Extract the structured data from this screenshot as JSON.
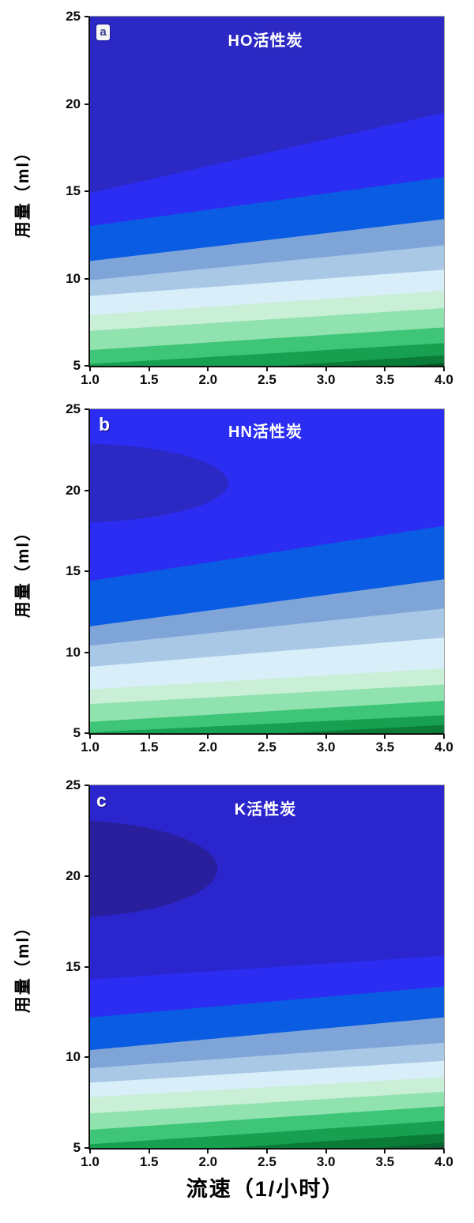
{
  "figure": {
    "x_axis_title": "流速（1/小时）",
    "y_axis_title": "用量（ml）"
  },
  "chart_data": [
    {
      "type": "heatmap",
      "panel_label": "a",
      "panel_label_style": "chip",
      "title": "HO活性炭",
      "xlabel": "流速（1/小时）",
      "ylabel": "用量（ml）",
      "xlim": [
        1.0,
        4.0
      ],
      "ylim": [
        5,
        25
      ],
      "x_ticks": [
        1.0,
        1.5,
        2.0,
        2.5,
        3.0,
        3.5,
        4.0
      ],
      "x_tick_labels": [
        "1.0",
        "1.5",
        "2.0",
        "2.5",
        "3.0",
        "3.5",
        "4.0"
      ],
      "y_ticks": [
        5,
        10,
        15,
        20,
        25
      ],
      "y_tick_labels": [
        "5",
        "10",
        "15",
        "20",
        "25"
      ],
      "legend": "none",
      "grid": false,
      "field_color": "#2b28c4",
      "blob": null,
      "bands": [
        {
          "color": "#2b2ef2",
          "y_at_x1": 14.9,
          "y_at_x4": 19.5
        },
        {
          "color": "#0a5ce2",
          "y_at_x1": 13.0,
          "y_at_x4": 15.8
        },
        {
          "color": "#7fa5d8",
          "y_at_x1": 11.0,
          "y_at_x4": 13.4
        },
        {
          "color": "#a9c8e6",
          "y_at_x1": 9.9,
          "y_at_x4": 11.9
        },
        {
          "color": "#d8eef8",
          "y_at_x1": 9.0,
          "y_at_x4": 10.5
        },
        {
          "color": "#c9efd6",
          "y_at_x1": 7.9,
          "y_at_x4": 9.3
        },
        {
          "color": "#90e2ae",
          "y_at_x1": 7.0,
          "y_at_x4": 8.3
        },
        {
          "color": "#3fc578",
          "y_at_x1": 5.9,
          "y_at_x4": 7.2
        },
        {
          "color": "#16a04f",
          "y_at_x1": 5.1,
          "y_at_x4": 6.3
        },
        {
          "color": "#0b7c38",
          "y_at_x1": 4.3,
          "y_at_x4": 5.6
        },
        {
          "color": "#05531f",
          "y_at_x1": 3.6,
          "y_at_x4": 5.15
        }
      ]
    },
    {
      "type": "heatmap",
      "panel_label": "b",
      "panel_label_style": "plain",
      "title": "HN活性炭",
      "xlabel": "流速（1/小时）",
      "ylabel": "用量（ml）",
      "xlim": [
        1.0,
        4.0
      ],
      "ylim": [
        5,
        25
      ],
      "x_ticks": [
        1.0,
        1.5,
        2.0,
        2.5,
        3.0,
        3.5,
        4.0
      ],
      "x_tick_labels": [
        "1.0",
        "1.5",
        "2.0",
        "2.5",
        "3.0",
        "3.5",
        "4.0"
      ],
      "y_ticks": [
        5,
        10,
        15,
        20,
        25
      ],
      "y_tick_labels": [
        "5",
        "10",
        "15",
        "20",
        "25"
      ],
      "legend": "none",
      "grid": false,
      "field_color": "#2b2ef2",
      "blob": {
        "color": "#2b28c4",
        "cx": 0.85,
        "cy": 20.45,
        "rx": 1.32,
        "ry": 2.45
      },
      "bands": [
        {
          "color": "#0a5ce2",
          "y_at_x1": 14.4,
          "y_at_x4": 17.8
        },
        {
          "color": "#7fa5d8",
          "y_at_x1": 11.6,
          "y_at_x4": 14.5
        },
        {
          "color": "#a9c8e6",
          "y_at_x1": 10.4,
          "y_at_x4": 12.7
        },
        {
          "color": "#d8eef8",
          "y_at_x1": 9.1,
          "y_at_x4": 10.9
        },
        {
          "color": "#c9efd6",
          "y_at_x1": 7.7,
          "y_at_x4": 9.0
        },
        {
          "color": "#90e2ae",
          "y_at_x1": 6.8,
          "y_at_x4": 8.0
        },
        {
          "color": "#3fc578",
          "y_at_x1": 5.7,
          "y_at_x4": 7.0
        },
        {
          "color": "#16a04f",
          "y_at_x1": 5.05,
          "y_at_x4": 6.1
        },
        {
          "color": "#0b7c38",
          "y_at_x1": 4.4,
          "y_at_x4": 5.5
        },
        {
          "color": "#075a28",
          "y_at_x1": 3.6,
          "y_at_x4": 5.05
        }
      ]
    },
    {
      "type": "heatmap",
      "panel_label": "c",
      "panel_label_style": "plain",
      "title": "K活性炭",
      "xlabel": "流速（1/小时）",
      "ylabel": "用量（ml）",
      "xlim": [
        1.0,
        4.0
      ],
      "ylim": [
        5,
        25
      ],
      "x_ticks": [
        1.0,
        1.5,
        2.0,
        2.5,
        3.0,
        3.5,
        4.0
      ],
      "x_tick_labels": [
        "1.0",
        "1.5",
        "2.0",
        "2.5",
        "3.0",
        "3.5",
        "4.0"
      ],
      "y_ticks": [
        5,
        10,
        15,
        20,
        25
      ],
      "y_tick_labels": [
        "5",
        "10",
        "15",
        "20",
        "25"
      ],
      "legend": "none",
      "grid": false,
      "field_color": "#2a25cd",
      "blob": {
        "color": "#291f9c",
        "cx": 0.75,
        "cy": 20.4,
        "rx": 1.33,
        "ry": 2.7
      },
      "bands": [
        {
          "color": "#2b2ef2",
          "y_at_x1": 14.3,
          "y_at_x4": 15.6
        },
        {
          "color": "#0a5ce2",
          "y_at_x1": 12.2,
          "y_at_x4": 13.9
        },
        {
          "color": "#7fa5d8",
          "y_at_x1": 10.4,
          "y_at_x4": 12.2
        },
        {
          "color": "#a9c8e6",
          "y_at_x1": 9.4,
          "y_at_x4": 10.8
        },
        {
          "color": "#d8eef8",
          "y_at_x1": 8.6,
          "y_at_x4": 9.8
        },
        {
          "color": "#c9efd6",
          "y_at_x1": 7.8,
          "y_at_x4": 8.9
        },
        {
          "color": "#90e2ae",
          "y_at_x1": 6.9,
          "y_at_x4": 8.1
        },
        {
          "color": "#3fc578",
          "y_at_x1": 6.0,
          "y_at_x4": 7.3
        },
        {
          "color": "#16a04f",
          "y_at_x1": 5.2,
          "y_at_x4": 6.5
        },
        {
          "color": "#0b7c38",
          "y_at_x1": 4.5,
          "y_at_x4": 5.8
        },
        {
          "color": "#0a6530",
          "y_at_x1": 3.7,
          "y_at_x4": 5.3
        },
        {
          "color": "#1b4633",
          "y_at_x1": 2.8,
          "y_at_x4": 5.08
        }
      ]
    }
  ]
}
